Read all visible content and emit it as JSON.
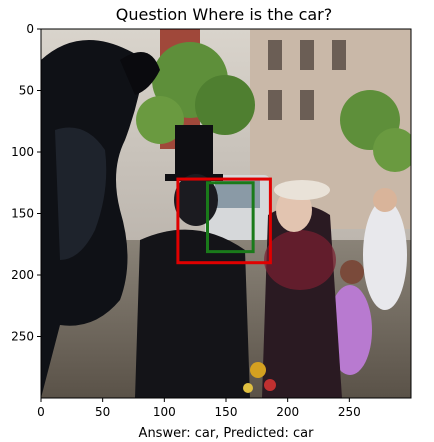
{
  "chart_data": {
    "type": "image",
    "title": "Question Where is the car?",
    "xlabel": "Answer: car, Predicted: car",
    "ylabel": "",
    "xlim": [
      0,
      300
    ],
    "ylim": [
      300,
      0
    ],
    "xticks": [
      0,
      50,
      100,
      150,
      200,
      250
    ],
    "yticks": [
      0,
      50,
      100,
      150,
      200,
      250
    ],
    "boxes": [
      {
        "label": "",
        "color": "#e00000",
        "x0": 111,
        "y0": 122,
        "x1": 186,
        "y1": 190
      },
      {
        "label": "",
        "color": "#1a7a1a",
        "x0": 135,
        "y0": 125,
        "x1": 172,
        "y1": 181
      }
    ]
  }
}
